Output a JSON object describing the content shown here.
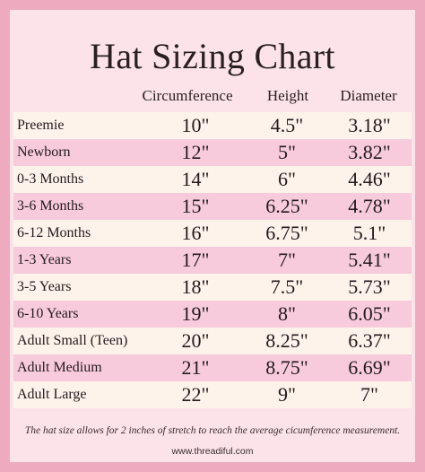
{
  "title": "Hat Sizing Chart",
  "columns": {
    "circumference": "Circumference",
    "height": "Height",
    "diameter": "Diameter"
  },
  "rows": [
    {
      "size": "Preemie",
      "circumference": "10\"",
      "height": "4.5\"",
      "diameter": "3.18\""
    },
    {
      "size": "Newborn",
      "circumference": "12\"",
      "height": "5\"",
      "diameter": "3.82\""
    },
    {
      "size": "0-3 Months",
      "circumference": "14\"",
      "height": "6\"",
      "diameter": "4.46\""
    },
    {
      "size": "3-6 Months",
      "circumference": "15\"",
      "height": "6.25\"",
      "diameter": "4.78\""
    },
    {
      "size": "6-12 Months",
      "circumference": "16\"",
      "height": "6.75\"",
      "diameter": "5.1\""
    },
    {
      "size": "1-3 Years",
      "circumference": "17\"",
      "height": "7\"",
      "diameter": "5.41\""
    },
    {
      "size": "3-5 Years",
      "circumference": "18\"",
      "height": "7.5\"",
      "diameter": "5.73\""
    },
    {
      "size": "6-10 Years",
      "circumference": "19\"",
      "height": "8\"",
      "diameter": "6.05\""
    },
    {
      "size": "Adult Small (Teen)",
      "circumference": "20\"",
      "height": "8.25\"",
      "diameter": "6.37\""
    },
    {
      "size": "Adult Medium",
      "circumference": "21\"",
      "height": "8.75\"",
      "diameter": "6.69\""
    },
    {
      "size": "Adult Large",
      "circumference": "22\"",
      "height": "9\"",
      "diameter": "7\""
    }
  ],
  "note": "The hat size allows for 2 inches of stretch to reach the average cicumference measurement.",
  "website": "www.threadiful.com",
  "colors": {
    "border": "#eeaabf",
    "card": "#fce3ea",
    "row_light": "#fdf3ea",
    "row_pink": "#f8cbdc"
  }
}
